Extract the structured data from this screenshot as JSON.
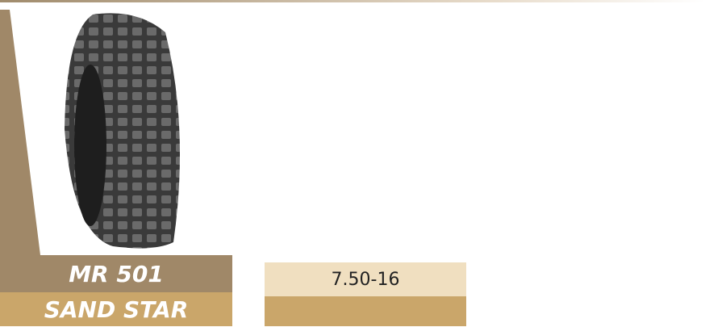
{
  "product": {
    "model": "MR 501",
    "name": "SAND STAR",
    "size": "7.50-16"
  }
}
